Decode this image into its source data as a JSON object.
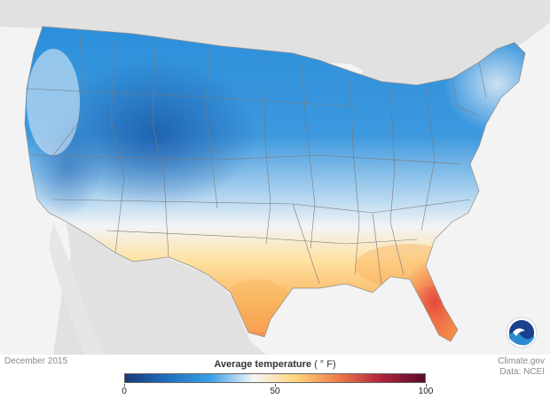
{
  "map": {
    "title": "Average temperature",
    "unit": "( ° F)",
    "period": "December 2015",
    "credit_line_1": "Climate.gov",
    "credit_line_2": "Data: NCEI",
    "logo_text": "NOAA",
    "legend": {
      "min": 0,
      "max": 100,
      "ticks": [
        {
          "value": 0,
          "label": "0"
        },
        {
          "value": 50,
          "label": "50"
        },
        {
          "value": 100,
          "label": "100"
        }
      ],
      "colors": [
        "#173a78",
        "#1f6fc0",
        "#3aa0e6",
        "#f7f7f7",
        "#ffd27a",
        "#f07a4a",
        "#b0213a",
        "#5a0b2a"
      ]
    },
    "background_land": "#e1e1e1",
    "background_sea": "#f3f3f3"
  }
}
